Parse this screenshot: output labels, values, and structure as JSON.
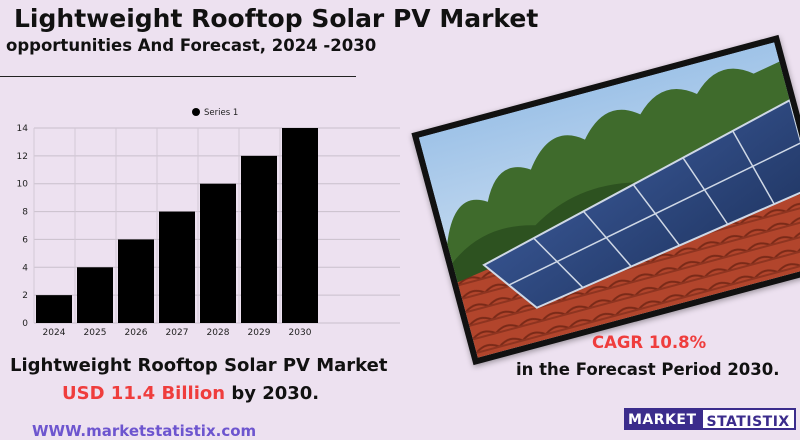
{
  "header": {
    "title": "Lightweight Rooftop Solar PV Market",
    "subtitle": "opportunities And Forecast, 2024 -2030"
  },
  "chart_data": {
    "type": "bar",
    "categories": [
      "2024",
      "2025",
      "2026",
      "2027",
      "2028",
      "2029",
      "2030"
    ],
    "series": [
      {
        "name": "Series 1",
        "values": [
          2,
          4,
          6,
          8,
          10,
          12,
          14
        ]
      }
    ],
    "yticks": [
      0,
      2,
      4,
      6,
      8,
      10,
      12,
      14
    ],
    "ylim": [
      0,
      14
    ],
    "grid": true,
    "legend": "top-center",
    "bar_color": "#000000"
  },
  "footer": {
    "market_line": "Lightweight Rooftop Solar PV Market",
    "value_highlight": "USD 11.4 Billion",
    "value_suffix": " by 2030.",
    "cagr": "CAGR 10.8%",
    "forecast_period": "in the  Forecast Period  2030.",
    "website": "WWW.marketstatistix.com",
    "logo_part1": "MARKET",
    "logo_part2": "STATISTIX"
  },
  "colors": {
    "background": "#ede1f0",
    "accent_red": "#ef3d3d",
    "brand_purple": "#3b2c8c",
    "link_purple": "#6d55cf"
  },
  "image": {
    "icon": "rooftop-solar-panels-photo"
  }
}
